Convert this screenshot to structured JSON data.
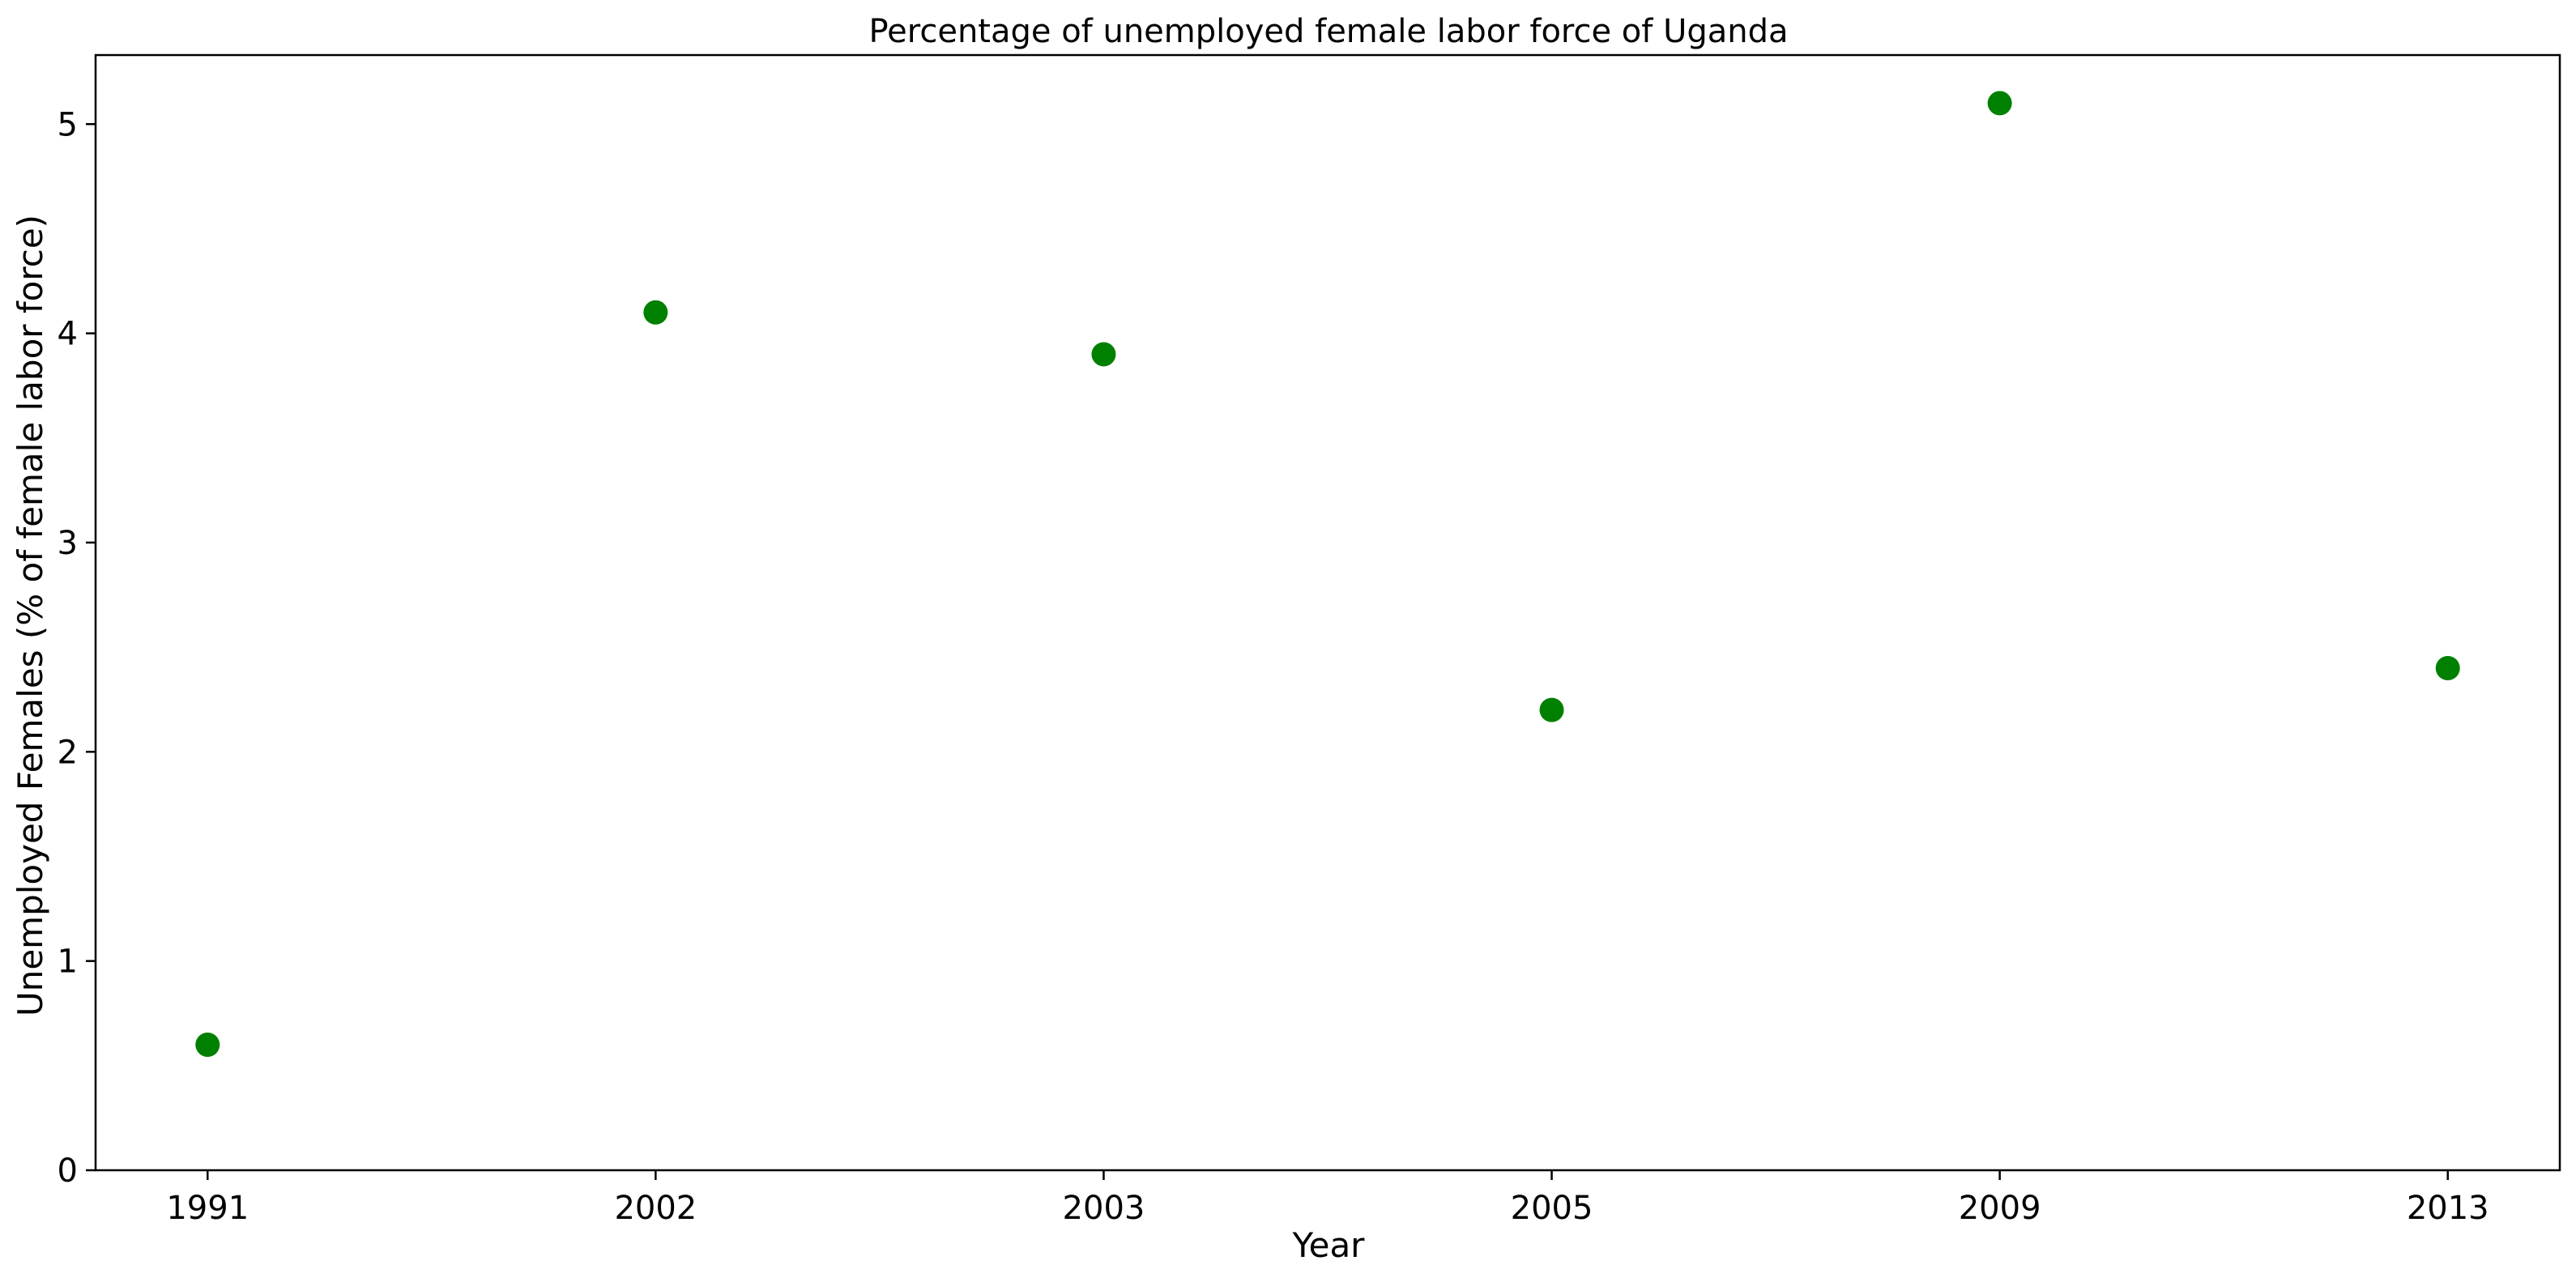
{
  "chart_data": {
    "type": "scatter",
    "title": "Percentage of unemployed female labor force of Uganda",
    "xlabel": "Year",
    "ylabel": "Unemployed Females (% of female labor force)",
    "categories": [
      "1991",
      "2002",
      "2003",
      "2005",
      "2009",
      "2013"
    ],
    "values": [
      0.6,
      4.1,
      3.9,
      2.2,
      5.1,
      2.4
    ],
    "ylim": [
      0,
      5.33
    ],
    "yticks": [
      0,
      1,
      2,
      3,
      4,
      5
    ],
    "grid": false,
    "legend": "none",
    "marker_color": "#008000"
  }
}
